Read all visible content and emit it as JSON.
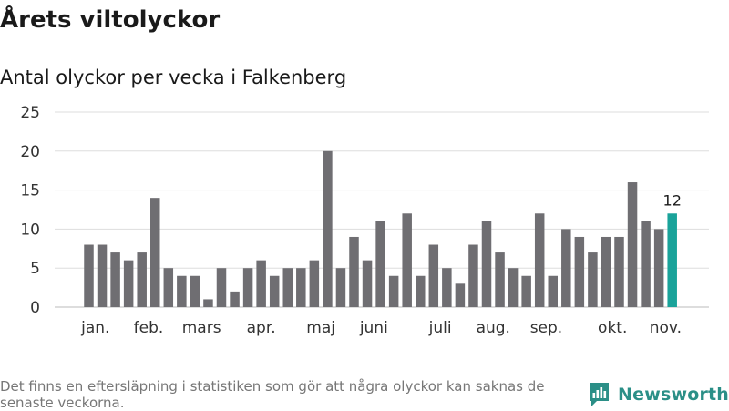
{
  "title": "Årets viltolyckor",
  "subtitle": "Antal olyckor per vecka i Falkenberg",
  "footnote": "Det finns en eftersläpning i statistiken som gör att några olyckor kan saknas de senaste veckorna.",
  "brand": {
    "name": "Newsworthy",
    "icon": "newsworthy-logo-icon"
  },
  "colors": {
    "bar": "#6f6e72",
    "highlight": "#1aa39a",
    "grid": "#dddddd",
    "brand": "#2b8f87"
  },
  "chart_data": {
    "type": "bar",
    "title": "Antal olyckor per vecka i Falkenberg",
    "xlabel": "",
    "ylabel": "",
    "ylim": [
      0,
      25
    ],
    "yticks": [
      0,
      5,
      10,
      15,
      20,
      25
    ],
    "grid": true,
    "legend": "none",
    "values": [
      8,
      8,
      7,
      6,
      7,
      14,
      5,
      4,
      4,
      1,
      5,
      2,
      5,
      6,
      4,
      5,
      5,
      6,
      20,
      5,
      9,
      6,
      11,
      4,
      12,
      4,
      8,
      5,
      3,
      8,
      11,
      7,
      5,
      4,
      12,
      4,
      10,
      9,
      7,
      9,
      9,
      16,
      11,
      10,
      12
    ],
    "highlight_index": 44,
    "highlight_label": "12",
    "month_labels": [
      {
        "label": "jan.",
        "bar_index": 0.5
      },
      {
        "label": "feb.",
        "bar_index": 4.5
      },
      {
        "label": "mars",
        "bar_index": 8.5
      },
      {
        "label": "apr.",
        "bar_index": 13.0
      },
      {
        "label": "maj",
        "bar_index": 17.5
      },
      {
        "label": "juni",
        "bar_index": 21.5
      },
      {
        "label": "juli",
        "bar_index": 26.5
      },
      {
        "label": "aug.",
        "bar_index": 30.5
      },
      {
        "label": "sep.",
        "bar_index": 34.5
      },
      {
        "label": "okt.",
        "bar_index": 39.5
      },
      {
        "label": "nov.",
        "bar_index": 43.5
      }
    ]
  }
}
